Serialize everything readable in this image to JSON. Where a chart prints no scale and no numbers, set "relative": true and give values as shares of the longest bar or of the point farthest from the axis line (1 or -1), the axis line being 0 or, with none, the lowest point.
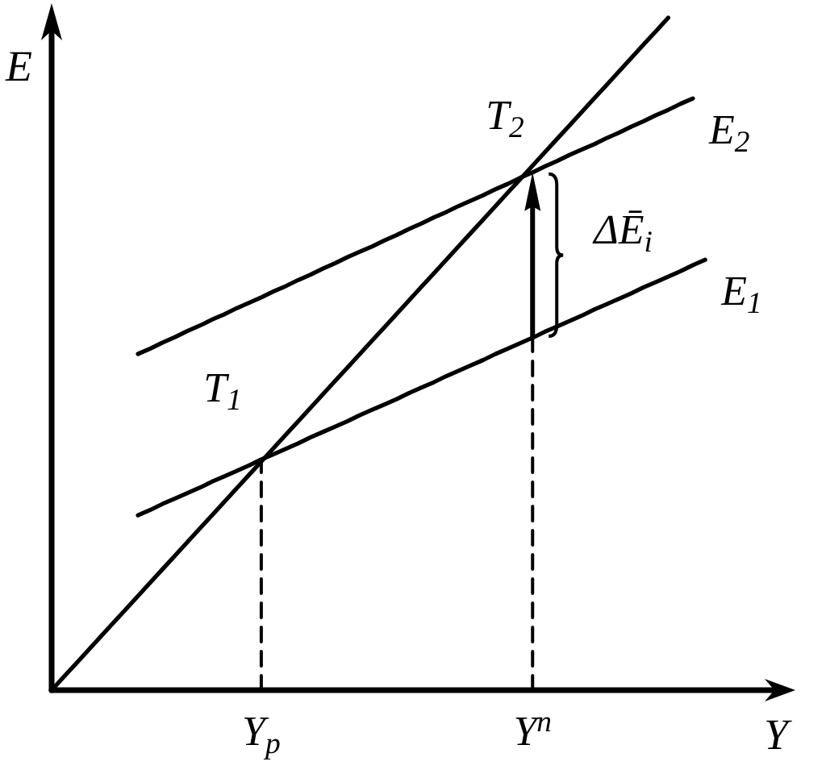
{
  "chart_data": {
    "type": "line",
    "relative": true,
    "xlabel": "Y",
    "ylabel": "E",
    "marker": "none",
    "categories": [
      null,
      null,
      null,
      null,
      null,
      null,
      null,
      null,
      null,
      null,
      null,
      null,
      null,
      null,
      null,
      null,
      null,
      "Y$_{p}$",
      null,
      null,
      null,
      null,
      null,
      null,
      null,
      null,
      null,
      null,
      null,
      null,
      null,
      null,
      null,
      null,
      null,
      null,
      null,
      null,
      null,
      "Y$^{n}$",
      null,
      null,
      null,
      null,
      null,
      null,
      null,
      null,
      null,
      null,
      null,
      null,
      null,
      null,
      null,
      null,
      null,
      null,
      null,
      null
    ],
    "series": [
      {
        "color": "#000000",
        "values": [
          0,
          0.02,
          0.04,
          0.06,
          0.08,
          0.1,
          0.12,
          0.14,
          0.16,
          0.18,
          0.2,
          0.22,
          0.24,
          0.26,
          0.28,
          0.3,
          0.32,
          0.34,
          0.36,
          0.38,
          0.4,
          0.42,
          0.44,
          0.46,
          0.48,
          0.5,
          0.52,
          0.54,
          0.56,
          0.58,
          0.6,
          0.62,
          0.64,
          0.66,
          0.68,
          0.7,
          0.72,
          0.74,
          0.76,
          0.78,
          0.8,
          0.82,
          0.84,
          0.86,
          0.88,
          0.9,
          0.92,
          0.94,
          0.96,
          0.98,
          1,
          null,
          null,
          null,
          null,
          null,
          null,
          null,
          null,
          null
        ]
      },
      {
        "name": "E$_{1}$",
        "color": "#000000",
        "values": [
          null,
          null,
          null,
          null,
          null,
          null,
          null,
          0.26,
          0.268,
          0.277,
          0.285,
          0.293,
          0.301,
          0.31,
          0.318,
          0.326,
          0.334,
          0.343,
          0.351,
          0.359,
          0.367,
          0.376,
          0.384,
          0.392,
          0.4,
          0.409,
          0.417,
          0.425,
          0.433,
          0.442,
          0.45,
          0.458,
          0.467,
          0.475,
          0.483,
          0.491,
          0.5,
          0.508,
          0.516,
          0.524,
          0.533,
          0.541,
          0.549,
          0.557,
          0.566,
          0.574,
          0.582,
          0.59,
          0.599,
          0.607,
          0.615,
          0.623,
          0.632,
          0.64,
          null,
          null,
          null,
          null,
          null,
          null
        ]
      },
      {
        "name": "E$_{2}$",
        "color": "#000000",
        "values": [
          null,
          null,
          null,
          null,
          null,
          null,
          null,
          0.5,
          0.508,
          0.517,
          0.525,
          0.534,
          0.542,
          0.551,
          0.559,
          0.568,
          0.576,
          0.584,
          0.593,
          0.601,
          0.61,
          0.618,
          0.627,
          0.635,
          0.644,
          0.652,
          0.66,
          0.669,
          0.677,
          0.686,
          0.694,
          0.703,
          0.711,
          0.72,
          0.728,
          0.736,
          0.745,
          0.753,
          0.762,
          0.77,
          0.779,
          0.787,
          0.796,
          0.804,
          0.812,
          0.821,
          0.829,
          0.838,
          0.846,
          0.855,
          0.863,
          0.872,
          0.88,
          null,
          null,
          null,
          null,
          null,
          null,
          null
        ]
      },
      {
        "color": "#000000",
        "line_style": "dashed",
        "x": [
          "Y$_{p}$",
          "Y$_{p}$"
        ],
        "values": [
          0,
          0.34
        ]
      },
      {
        "color": "#000000",
        "line_style": "dashed",
        "x": [
          "Y$^{n}$",
          "Y$^{n}$"
        ],
        "values": [
          0,
          0.524
        ]
      }
    ],
    "annotations": [
      "T$_{1}$",
      "T$_{2}$",
      {
        "text": "ΔĒ$_{i}$",
        "x": "Y$^{n}$",
        "y": 0.77
      }
    ]
  }
}
